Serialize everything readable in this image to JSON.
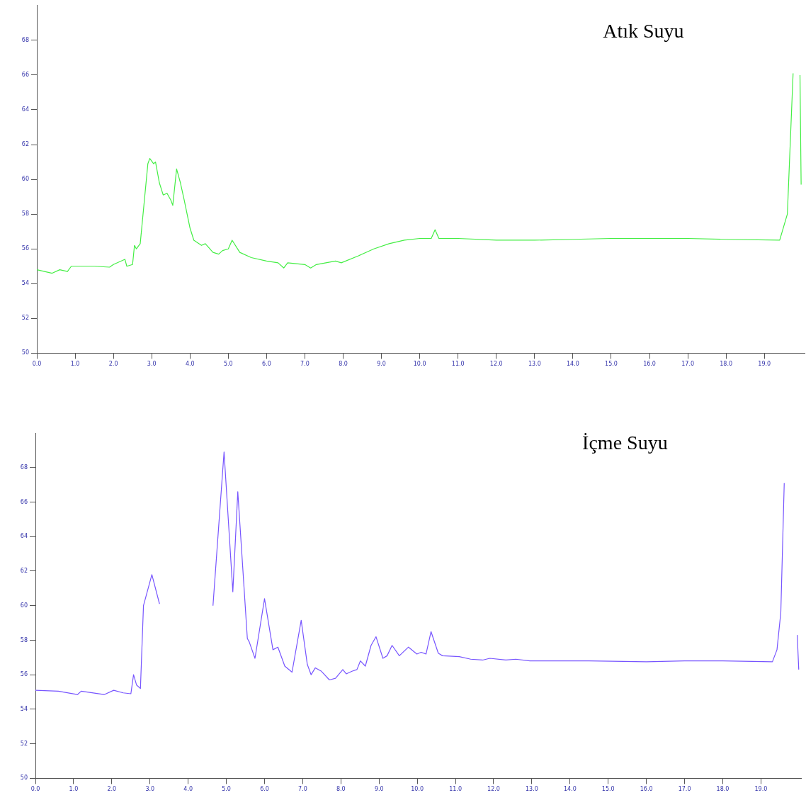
{
  "chart_data": [
    {
      "type": "line",
      "title": "Atık Suyu",
      "xlim": [
        0,
        20.05
      ],
      "ylim": [
        50,
        70
      ],
      "xticks": [
        {
          "value": 0,
          "label": "0.0"
        },
        {
          "value": 1,
          "label": "1.0"
        },
        {
          "value": 2,
          "label": "2.0"
        },
        {
          "value": 3,
          "label": "3.0"
        },
        {
          "value": 4,
          "label": "4.0"
        },
        {
          "value": 5,
          "label": "5.0"
        },
        {
          "value": 6,
          "label": "6.0"
        },
        {
          "value": 7,
          "label": "7.0"
        },
        {
          "value": 8,
          "label": "8.0"
        },
        {
          "value": 9,
          "label": "9.0"
        },
        {
          "value": 10,
          "label": "10.0"
        },
        {
          "value": 11,
          "label": "11.0"
        },
        {
          "value": 12,
          "label": "12.0"
        },
        {
          "value": 13,
          "label": "13.0"
        },
        {
          "value": 14,
          "label": "14.0"
        },
        {
          "value": 15,
          "label": "15.0"
        },
        {
          "value": 16,
          "label": "16.0"
        },
        {
          "value": 17,
          "label": "17.0"
        },
        {
          "value": 18,
          "label": "18.0"
        },
        {
          "value": 19,
          "label": "19.0"
        }
      ],
      "yticks": [
        50,
        52,
        54,
        56,
        58,
        60,
        62,
        64,
        66,
        68
      ],
      "marker": "none",
      "line_style": "solid",
      "series": [
        {
          "color": "#44ee44",
          "x": [
            0,
            0.4,
            0.6,
            0.8,
            0.9,
            1.5,
            1.9,
            2.0,
            2.3,
            2.35,
            2.5,
            2.55,
            2.6,
            2.7,
            2.8,
            2.9,
            2.95,
            3.05,
            3.1,
            3.2,
            3.3,
            3.4,
            3.5,
            3.55,
            3.65,
            3.75,
            3.85,
            4.0,
            4.1,
            4.3,
            4.4,
            4.6,
            4.75,
            4.85,
            5.0,
            5.1,
            5.3,
            5.6,
            6.0,
            6.3,
            6.45,
            6.55,
            7.0,
            7.15,
            7.3,
            7.8,
            7.95,
            8.4,
            8.8,
            9.2,
            9.6,
            10.0,
            10.3,
            10.4,
            10.5,
            11.0,
            12.0,
            13.0,
            14.0,
            15.0,
            16.0,
            17.0,
            18.0,
            19.4,
            19.6,
            19.75,
            19.85,
            19.93,
            19.96
          ],
          "values": [
            54.8,
            54.6,
            54.8,
            54.7,
            55.0,
            55.0,
            54.95,
            55.1,
            55.4,
            55.0,
            55.1,
            56.2,
            56.0,
            56.3,
            58.6,
            60.9,
            61.2,
            60.9,
            61.0,
            59.8,
            59.1,
            59.2,
            58.8,
            58.5,
            60.6,
            59.8,
            58.8,
            57.2,
            56.5,
            56.2,
            56.3,
            55.8,
            55.7,
            55.9,
            56.0,
            56.5,
            55.8,
            55.5,
            55.3,
            55.2,
            54.9,
            55.2,
            55.1,
            54.9,
            55.1,
            55.3,
            55.2,
            55.6,
            56.0,
            56.3,
            56.5,
            56.6,
            56.6,
            57.1,
            56.6,
            56.6,
            56.5,
            56.5,
            56.55,
            56.6,
            56.6,
            56.6,
            56.55,
            56.5,
            58.0,
            66.1,
            null,
            66.0,
            59.7
          ]
        }
      ]
    },
    {
      "type": "line",
      "title": "İçme Suyu",
      "xlim": [
        0,
        20.05
      ],
      "ylim": [
        50,
        70
      ],
      "xticks": [
        {
          "value": 0,
          "label": "0.0"
        },
        {
          "value": 1,
          "label": "1.0"
        },
        {
          "value": 2,
          "label": "2.0"
        },
        {
          "value": 3,
          "label": "3.0"
        },
        {
          "value": 4,
          "label": "4.0"
        },
        {
          "value": 5,
          "label": "5.0"
        },
        {
          "value": 6,
          "label": "6.0"
        },
        {
          "value": 7,
          "label": "7.0"
        },
        {
          "value": 8,
          "label": "8.0"
        },
        {
          "value": 9,
          "label": "9.0"
        },
        {
          "value": 10,
          "label": "10.0"
        },
        {
          "value": 11,
          "label": "11.0"
        },
        {
          "value": 12,
          "label": "12.0"
        },
        {
          "value": 13,
          "label": "13.0"
        },
        {
          "value": 14,
          "label": "14.0"
        },
        {
          "value": 15,
          "label": "15.0"
        },
        {
          "value": 16,
          "label": "16.0"
        },
        {
          "value": 17,
          "label": "17.0"
        },
        {
          "value": 18,
          "label": "18.0"
        },
        {
          "value": 19,
          "label": "19.0"
        }
      ],
      "yticks": [
        50,
        52,
        54,
        56,
        58,
        60,
        62,
        64,
        66,
        68
      ],
      "marker": "none",
      "line_style": "solid",
      "series": [
        {
          "color": "#7755ff",
          "x": [
            0,
            0.6,
            1.1,
            1.2,
            1.8,
            2.05,
            2.3,
            2.5,
            2.57,
            2.65,
            2.75,
            2.83,
            3.05,
            3.25,
            3.45,
            4.56,
            4.65,
            4.94,
            5.17,
            5.3,
            5.55,
            5.6,
            5.75,
            6.0,
            6.22,
            6.35,
            6.53,
            6.72,
            6.96,
            7.12,
            7.22,
            7.33,
            7.49,
            7.7,
            7.86,
            8.05,
            8.14,
            8.29,
            8.42,
            8.51,
            8.64,
            8.79,
            8.92,
            9.1,
            9.21,
            9.34,
            9.53,
            9.77,
            9.99,
            10.1,
            10.23,
            10.36,
            10.55,
            10.66,
            11.1,
            11.4,
            11.71,
            11.9,
            12.32,
            12.58,
            12.95,
            13.56,
            14.5,
            16.0,
            17.0,
            18.0,
            19.3,
            19.42,
            19.52,
            19.61,
            19.63,
            19.9,
            19.95,
            19.99
          ],
          "values": [
            55.1,
            55.05,
            54.85,
            55.05,
            54.85,
            55.1,
            54.95,
            54.9,
            56.0,
            55.4,
            55.2,
            60.0,
            61.8,
            60.1,
            null,
            null,
            60.0,
            68.9,
            60.8,
            66.6,
            58.1,
            57.9,
            56.95,
            60.4,
            57.45,
            57.6,
            56.5,
            56.15,
            59.15,
            56.6,
            56.0,
            56.4,
            56.2,
            55.7,
            55.8,
            56.3,
            56.05,
            56.2,
            56.3,
            56.8,
            56.5,
            57.7,
            58.2,
            56.95,
            57.1,
            57.7,
            57.1,
            57.6,
            57.2,
            57.3,
            57.2,
            58.5,
            57.25,
            57.1,
            57.05,
            56.9,
            56.85,
            56.95,
            56.85,
            56.9,
            56.8,
            56.8,
            56.8,
            56.75,
            56.8,
            56.8,
            56.75,
            57.45,
            59.6,
            67.1,
            null,
            null,
            58.3,
            56.3
          ]
        }
      ]
    }
  ]
}
